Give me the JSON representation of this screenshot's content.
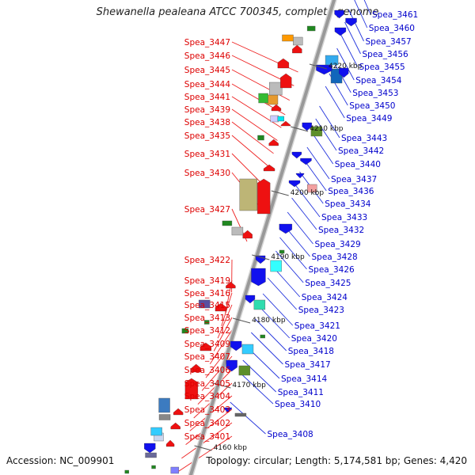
{
  "title": "Shewanella pealeana ATCC 700345, complete genome",
  "accession": "Accession: NC_009901",
  "summary": "Topology: circular; Length: 5,174,581 bp; Genes: 4,420",
  "colors": {
    "forward": "#ee1111",
    "reverse": "#1111ee",
    "backbone": "#999999",
    "tick": "#208820"
  },
  "kbp_marks": [
    "4160 kbp",
    "4170 kbp",
    "4180 kbp",
    "4190 kbp",
    "4200 kbp",
    "4210 kbp",
    "4220 kbp"
  ],
  "left_labels": [
    "Spea_3447",
    "Spea_3446",
    "Spea_3445",
    "Spea_3444",
    "Spea_3441",
    "Spea_3439",
    "Spea_3438",
    "Spea_3435",
    "Spea_3431",
    "Spea_3430",
    "Spea_3427",
    "Spea_3422",
    "Spea_3419",
    "Spea_3416",
    "Spea_3415",
    "Spea_3413",
    "Spea_3412",
    "Spea_3409",
    "Spea_3407",
    "Spea_3406",
    "Spea_3405",
    "Spea_3404",
    "Spea_3403",
    "Spea_3402",
    "Spea_3401"
  ],
  "right_labels": [
    "Spea_3461",
    "Spea_3460",
    "Spea_3457",
    "Spea_3456",
    "Spea_3455",
    "Spea_3454",
    "Spea_3453",
    "Spea_3450",
    "Spea_3449",
    "Spea_3443",
    "Spea_3442",
    "Spea_3440",
    "Spea_3437",
    "Spea_3436",
    "Spea_3434",
    "Spea_3433",
    "Spea_3432",
    "Spea_3429",
    "Spea_3428",
    "Spea_3426",
    "Spea_3425",
    "Spea_3424",
    "Spea_3423",
    "Spea_3421",
    "Spea_3420",
    "Spea_3418",
    "Spea_3417",
    "Spea_3414",
    "Spea_3411",
    "Spea_3410",
    "Spea_3408"
  ]
}
